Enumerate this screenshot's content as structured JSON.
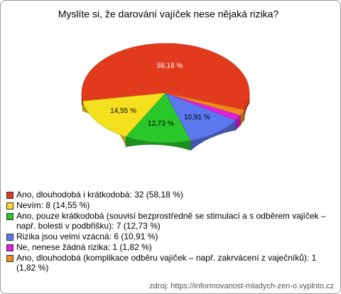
{
  "chart_data": {
    "type": "pie",
    "title": "Myslíte si, že darování vajíček nese nějaká rizika?",
    "categories": [
      "Ano, dlouhodobá i krátkodobá: 32 (58,18 %)",
      "Nevím: 8 (14,55 %)",
      "Ano, pouze krátkodobá (souvisí bezprostředně se stimulací a s odběrem vajíček – např. bolesti v podbřišku): 7 (12,73 %)",
      "Rizika jsou velmi vzácná: 6 (10,91 %)",
      "Ne, nenese žádná rizika: 1 (1,82 %)",
      "Ano, dlouhodobá (komplikace odběru vajíček – např. zakrvácení z vaječníků): 1 (1,82 %)"
    ],
    "values": [
      58.18,
      14.55,
      12.73,
      10.91,
      1.82,
      1.82
    ],
    "value_labels": [
      "58,18 %",
      "14,55 %",
      "12,73 %",
      "10,91 %",
      null,
      null
    ],
    "colors": [
      "#e23a1c",
      "#f4e01c",
      "#2ac72a",
      "#5b78ef",
      "#de22de",
      "#f08a1c"
    ],
    "source": "zdroj: https://informovanost-mladych-zen-o.vyplnto.cz"
  }
}
